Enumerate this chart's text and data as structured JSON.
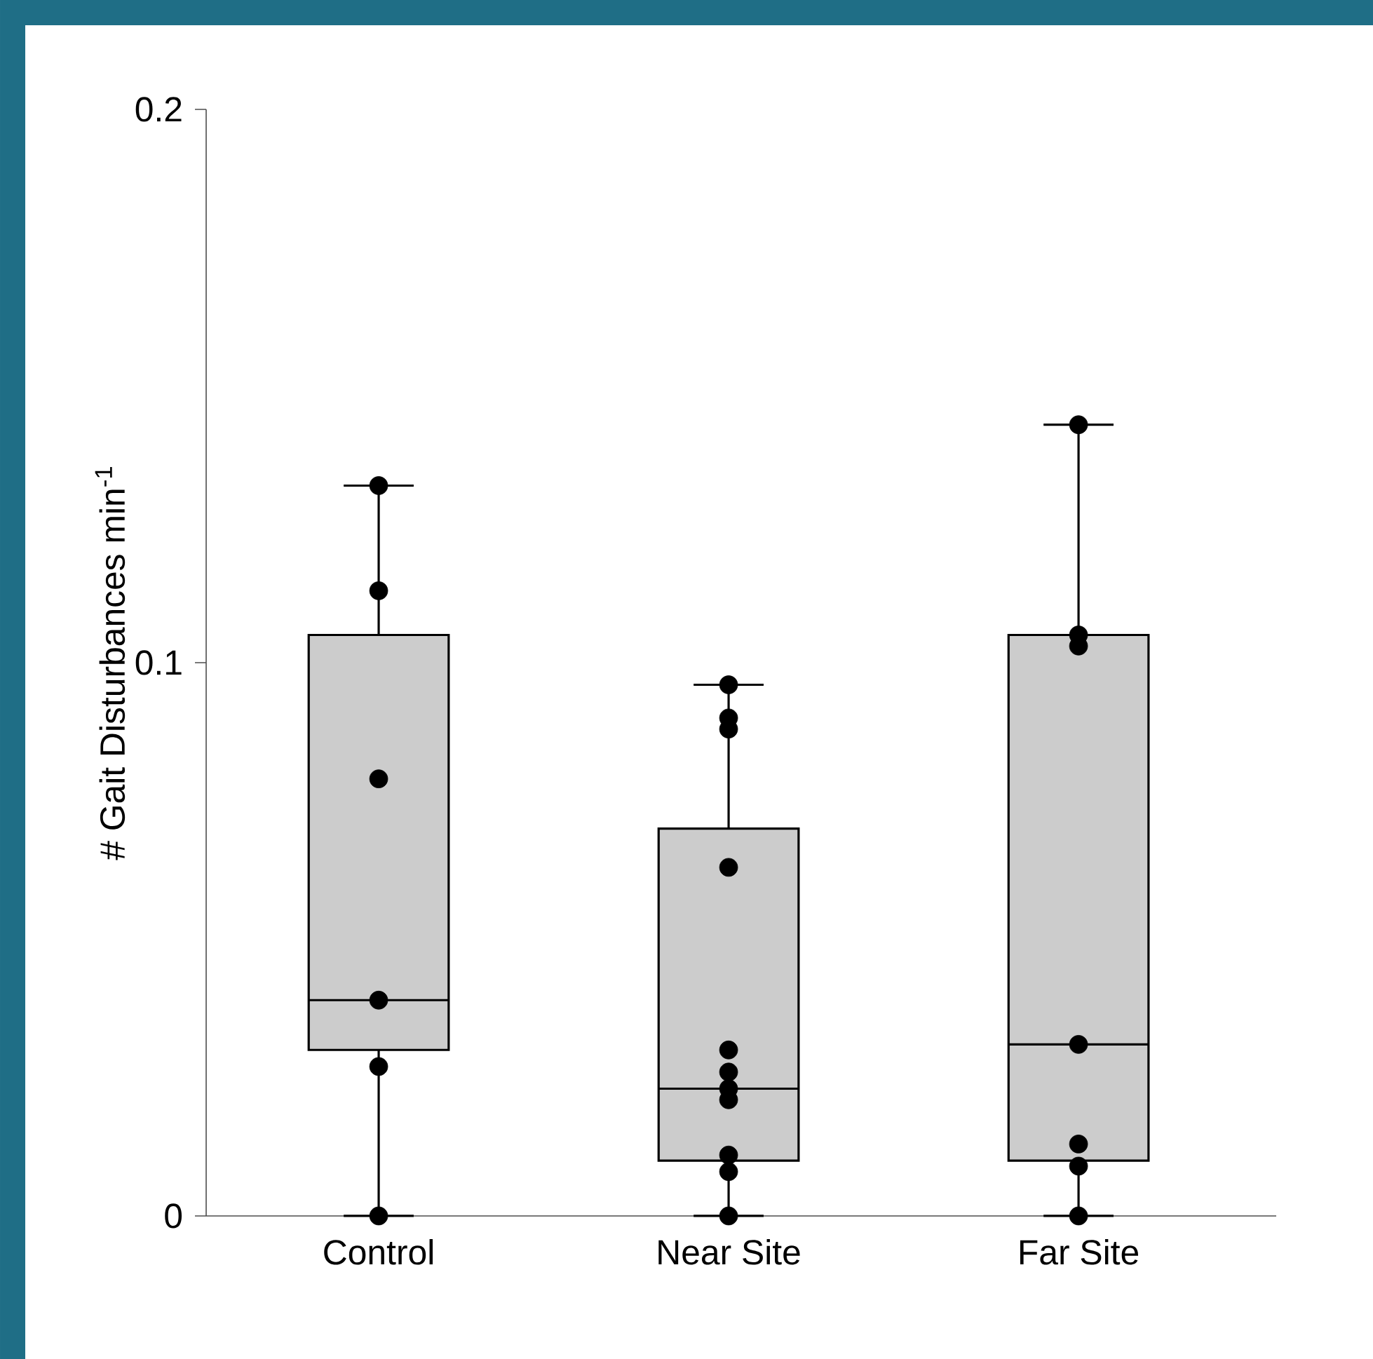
{
  "chart_data": {
    "type": "box",
    "ylabel": "# Gait Disturbances min$^{-1}$",
    "categories": [
      "Control",
      "Near Site",
      "Far Site"
    ],
    "marker": "circle",
    "ylim": [
      0,
      0.2
    ],
    "yticks": [
      0,
      0.1,
      0.2
    ],
    "series": [
      {
        "color": "#cccccc",
        "boxes": [
          {
            "low": 0,
            "q1": 0.03,
            "median": 0.039,
            "q3": 0.105,
            "high": 0.132
          },
          {
            "low": 0,
            "q1": 0.01,
            "median": 0.023,
            "q3": 0.07,
            "high": 0.096
          },
          {
            "low": 0,
            "q1": 0.01,
            "median": 0.031,
            "q3": 0.105,
            "high": 0.143
          }
        ]
      },
      {
        "type": "scatter",
        "color": "#000000",
        "x": [
          "Control",
          "Control",
          "Control",
          "Control",
          "Control",
          "Control",
          "Near Site",
          "Near Site",
          "Near Site",
          "Near Site",
          "Near Site",
          "Near Site",
          "Near Site",
          "Near Site",
          "Near Site",
          "Near Site",
          "Near Site",
          "Far Site",
          "Far Site",
          "Far Site",
          "Far Site",
          "Far Site",
          "Far Site",
          "Far Site"
        ],
        "values": [
          0.132,
          0.113,
          0.079,
          0.039,
          0.027,
          0,
          0.096,
          0.09,
          0.088,
          0.063,
          0.03,
          0.026,
          0.023,
          0.021,
          0.011,
          0.008,
          0,
          0.143,
          0.105,
          0.103,
          0.031,
          0.013,
          0.009,
          0
        ]
      }
    ]
  }
}
